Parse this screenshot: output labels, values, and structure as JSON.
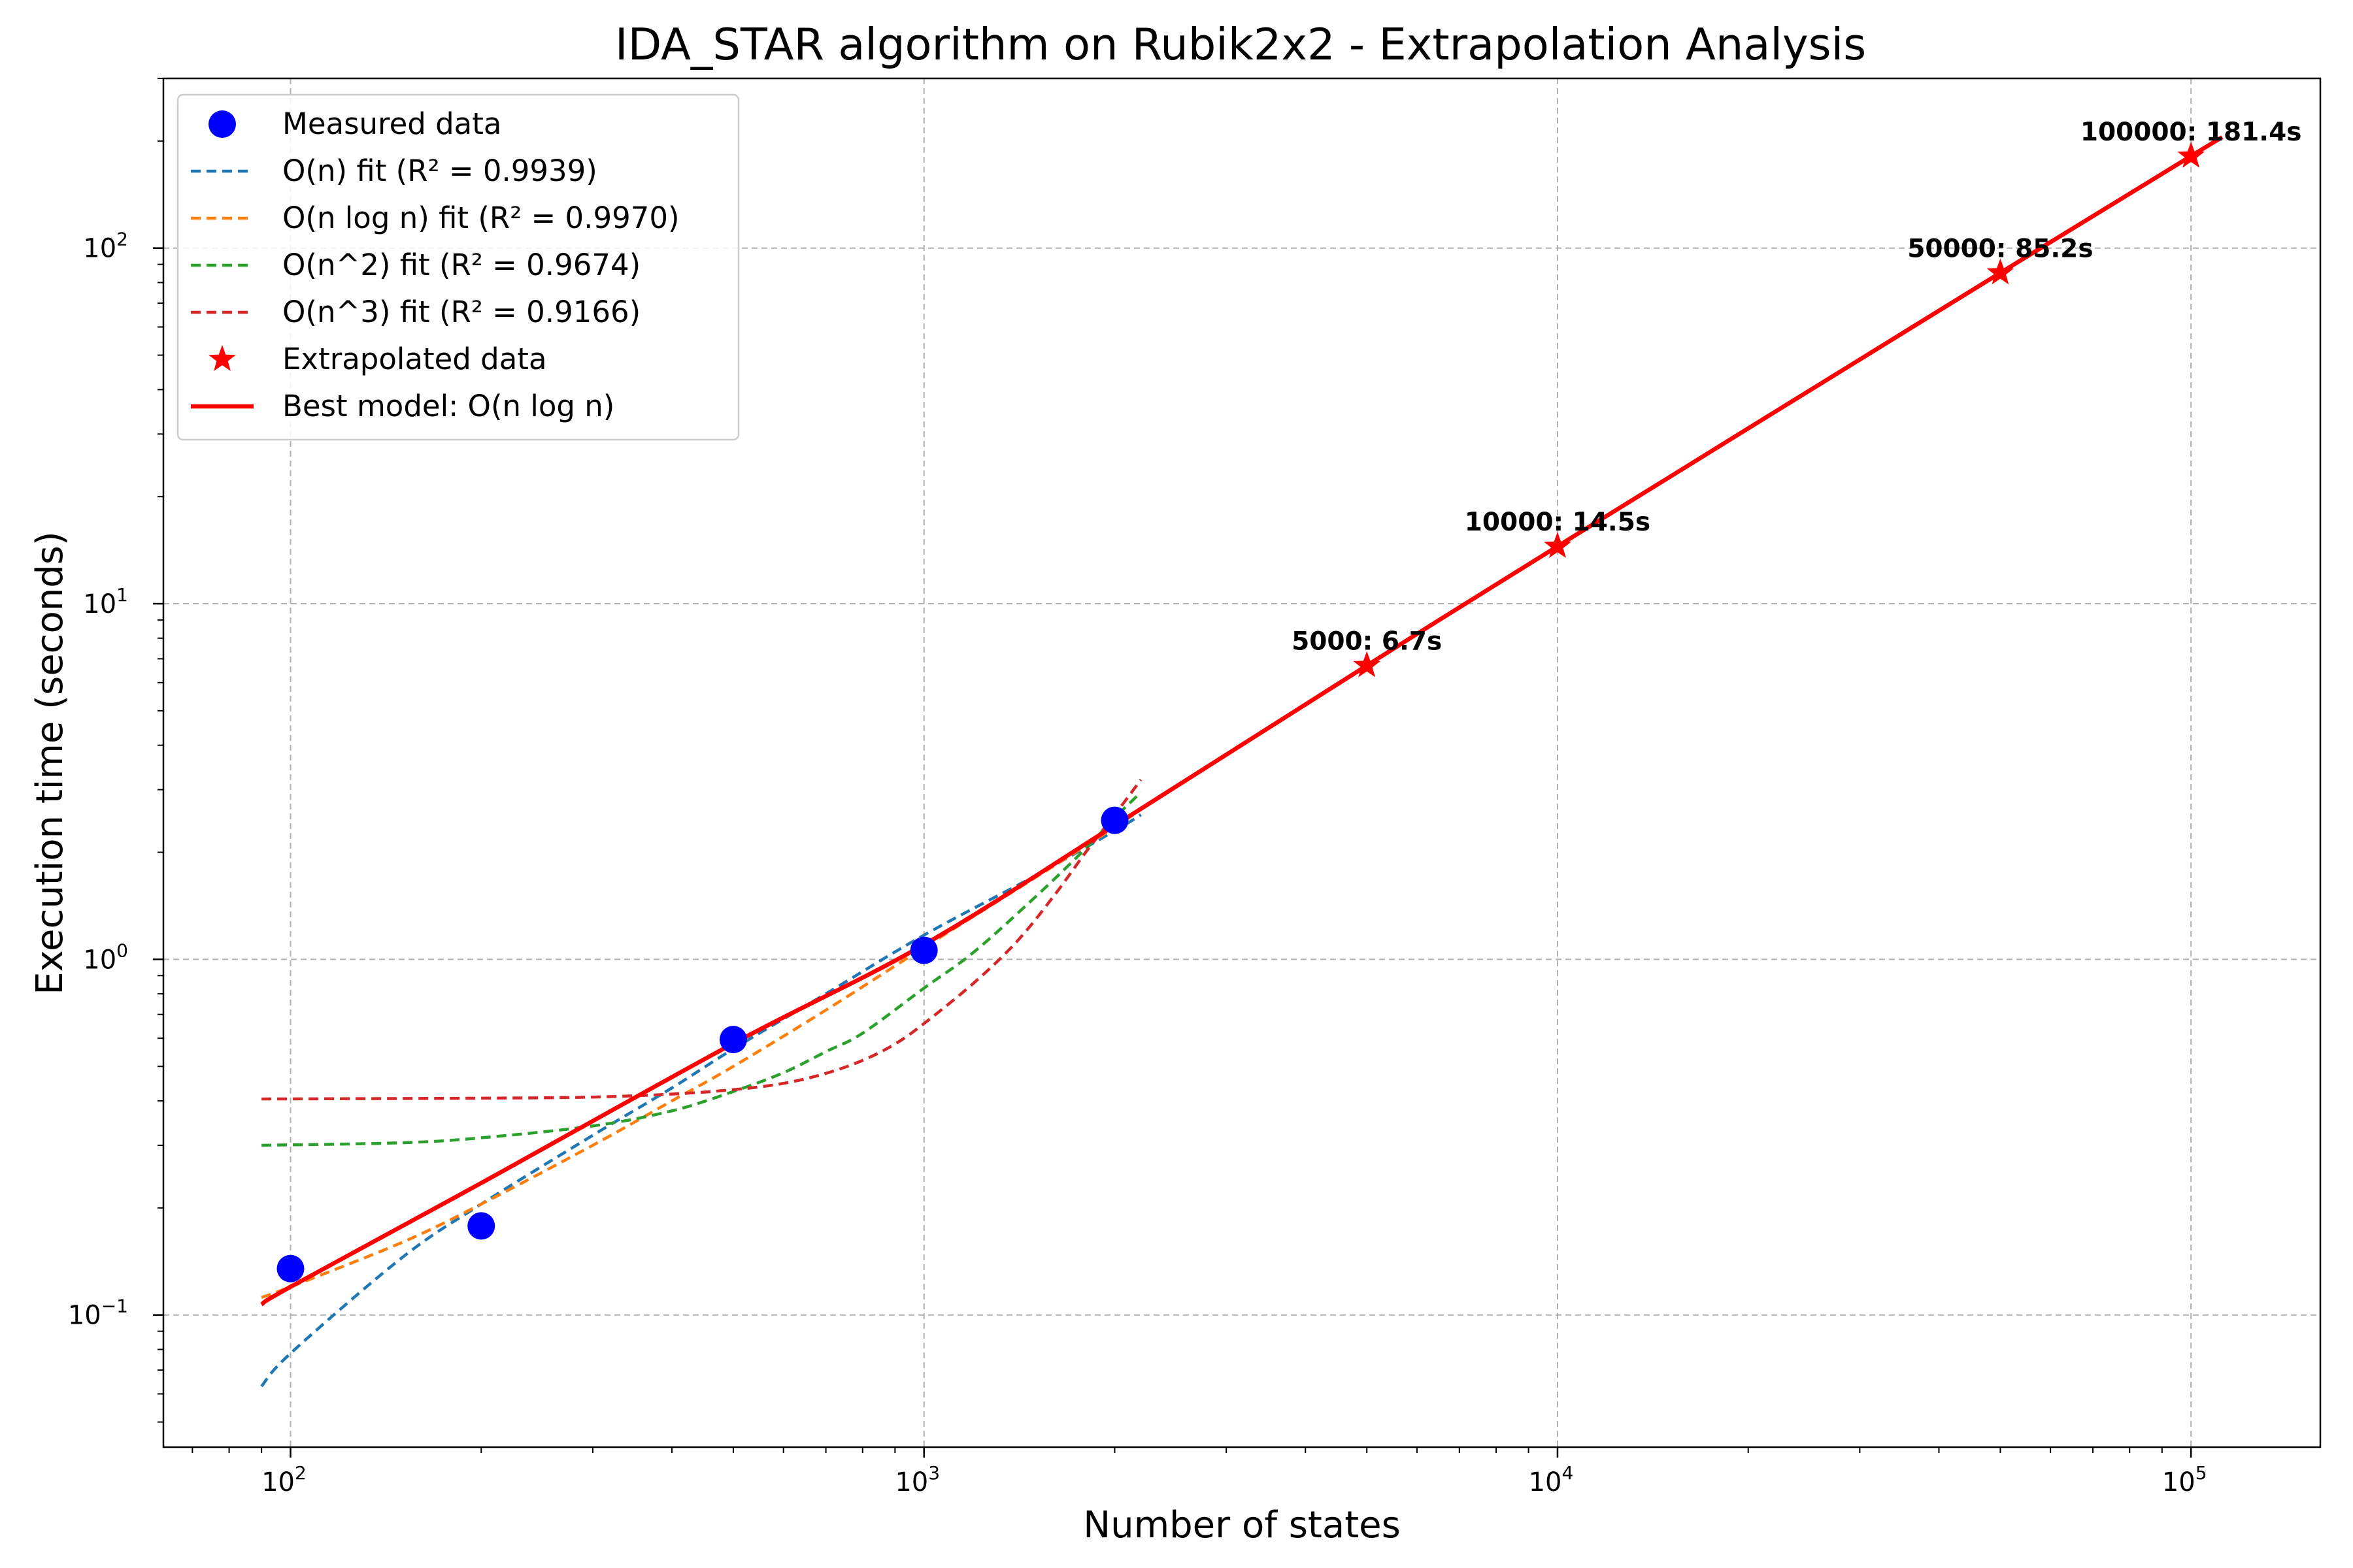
{
  "chart_data": {
    "type": "line",
    "title": "IDA_STAR algorithm on Rubik2x2 - Extrapolation Analysis",
    "xlabel": "Number of states",
    "ylabel": "Execution time (seconds)",
    "xscale": "log",
    "yscale": "log",
    "xlim": [
      63,
      160000
    ],
    "ylim": [
      0.0425,
      300
    ],
    "grid": true,
    "legend_position": "top-left",
    "x_ticks": [
      {
        "value": 100,
        "base": "10",
        "exp": "2"
      },
      {
        "value": 1000,
        "base": "10",
        "exp": "3"
      },
      {
        "value": 10000,
        "base": "10",
        "exp": "4"
      },
      {
        "value": 100000,
        "base": "10",
        "exp": "5"
      }
    ],
    "y_ticks": [
      {
        "value": 0.1,
        "base": "10",
        "exp": "−1"
      },
      {
        "value": 1,
        "base": "10",
        "exp": "0"
      },
      {
        "value": 10,
        "base": "10",
        "exp": "1"
      },
      {
        "value": 100,
        "base": "10",
        "exp": "2"
      }
    ],
    "measured": {
      "name": "Measured data",
      "color": "#0000ff",
      "x": [
        100,
        200,
        500,
        1000,
        2000
      ],
      "y": [
        0.135,
        0.178,
        0.595,
        1.06,
        2.46
      ]
    },
    "fits": [
      {
        "name": "O(n) fit (R² = 0.9939)",
        "color": "#1f77b4",
        "x": [
          90,
          100,
          150,
          200,
          300,
          400,
          500,
          700,
          1000,
          1500,
          2000,
          2200
        ],
        "y": [
          0.063,
          0.078,
          0.145,
          0.205,
          0.32,
          0.435,
          0.56,
          0.8,
          1.17,
          1.72,
          2.3,
          2.55
        ]
      },
      {
        "name": "O(n log n) fit (R² = 0.9970)",
        "color": "#ff7f0e",
        "x": [
          90,
          100,
          150,
          200,
          300,
          400,
          500,
          700,
          1000,
          1500,
          2000,
          2200
        ],
        "y": [
          0.112,
          0.12,
          0.16,
          0.205,
          0.3,
          0.4,
          0.5,
          0.72,
          1.08,
          1.7,
          2.35,
          2.65
        ]
      },
      {
        "name": "O(n^2) fit (R² = 0.9674)",
        "color": "#2ca02c",
        "x": [
          90,
          150,
          200,
          300,
          400,
          500,
          600,
          700,
          800,
          1000,
          1200,
          1500,
          1800,
          2000,
          2200
        ],
        "y": [
          0.3,
          0.305,
          0.315,
          0.34,
          0.375,
          0.425,
          0.48,
          0.55,
          0.62,
          0.83,
          1.05,
          1.5,
          2.05,
          2.5,
          2.95
        ]
      },
      {
        "name": "O(n^3) fit (R² = 0.9166)",
        "color": "#d62728",
        "x": [
          90,
          200,
          300,
          400,
          500,
          600,
          700,
          800,
          900,
          1000,
          1200,
          1400,
          1600,
          1800,
          2000,
          2200
        ],
        "y": [
          0.405,
          0.407,
          0.41,
          0.418,
          0.43,
          0.448,
          0.478,
          0.52,
          0.578,
          0.66,
          0.86,
          1.12,
          1.5,
          2.0,
          2.55,
          3.2
        ]
      }
    ],
    "extrapolated": {
      "name": "Extrapolated data",
      "color": "#ff0000",
      "x": [
        5000,
        10000,
        50000,
        100000
      ],
      "y": [
        6.7,
        14.5,
        85.2,
        181.4
      ],
      "labels": [
        "5000: 6.7s",
        "10000: 14.5s",
        "50000: 85.2s",
        "100000: 181.4s"
      ]
    },
    "best_model": {
      "name": "Best model: O(n log n)",
      "color": "#ff0000",
      "x": [
        90,
        100,
        200,
        500,
        1000,
        2000,
        5000,
        10000,
        50000,
        100000,
        112000
      ],
      "y": [
        0.107,
        0.12,
        0.235,
        0.58,
        1.1,
        2.38,
        6.7,
        14.5,
        85.2,
        181.4,
        205
      ]
    }
  }
}
